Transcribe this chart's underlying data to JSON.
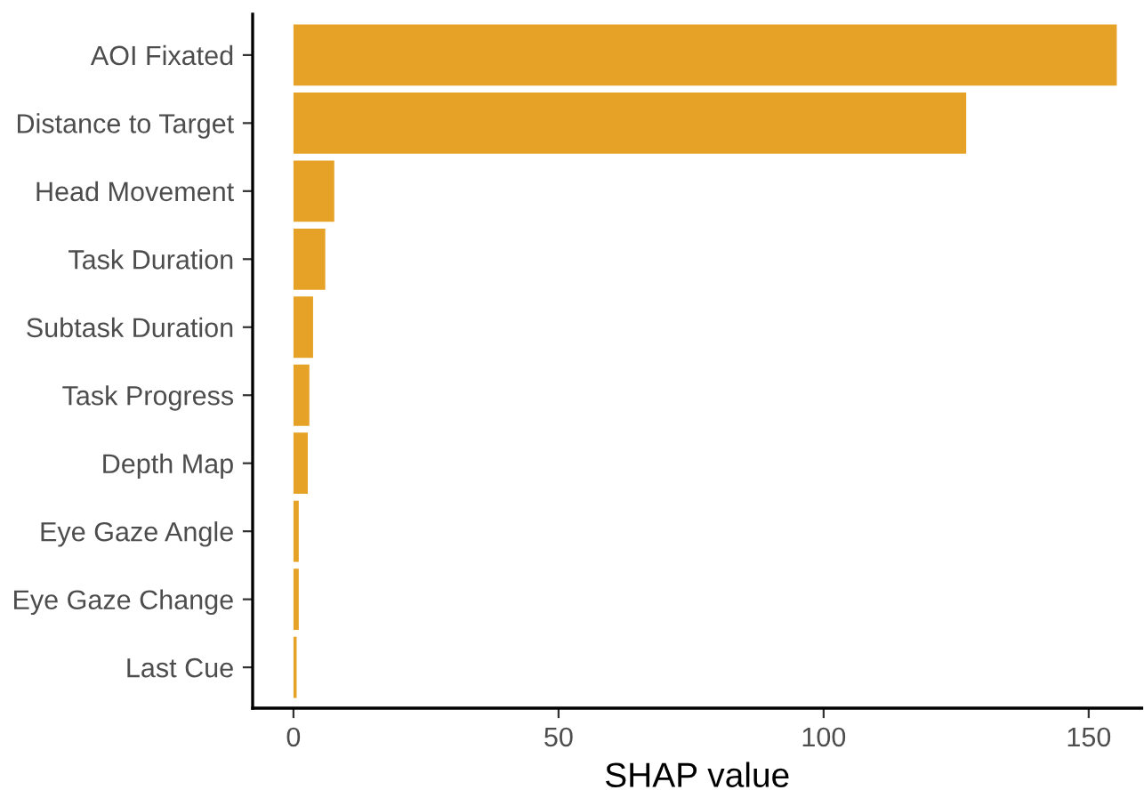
{
  "chart_data": {
    "type": "bar",
    "orientation": "horizontal",
    "xlabel": "SHAP value",
    "categories": [
      "AOI Fixated",
      "Distance to Target",
      "Head Movement",
      "Task Duration",
      "Subtask Duration",
      "Task Progress",
      "Depth Map",
      "Eye Gaze Angle",
      "Eye Gaze Change",
      "Last Cue"
    ],
    "values": [
      155.3,
      126.9,
      7.7,
      6,
      3.7,
      3,
      2.7,
      1,
      1,
      0.6
    ],
    "color": "#e6a227",
    "xlim": [
      -7.7,
      160
    ],
    "xticks": [
      0,
      50,
      100,
      150
    ],
    "grid": false,
    "legend": false
  }
}
